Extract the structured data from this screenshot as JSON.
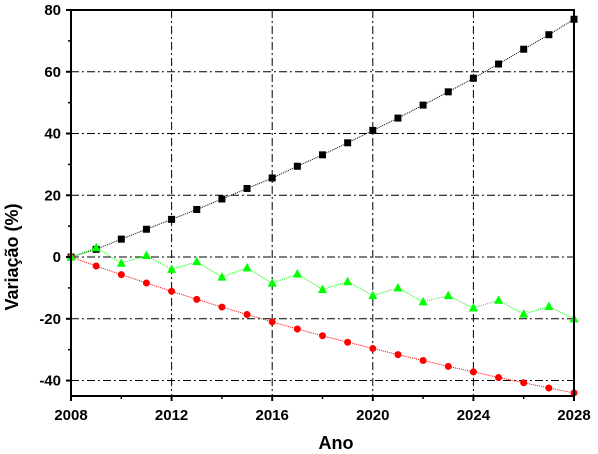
{
  "chart_data": {
    "type": "line",
    "xlabel": "Ano",
    "ylabel": "Variação (%)",
    "xlim": [
      2008,
      2028
    ],
    "ylim": [
      -45,
      80
    ],
    "x_ticks": [
      2008,
      2012,
      2016,
      2020,
      2024,
      2028
    ],
    "y_ticks": [
      -40,
      -20,
      0,
      20,
      40,
      60,
      80
    ],
    "grid": true,
    "grid_style": "dash-dot",
    "legend": "none",
    "series": [
      {
        "color": "#000000",
        "marker": "square",
        "x": [
          2008,
          2009,
          2010,
          2011,
          2012,
          2013,
          2014,
          2015,
          2016,
          2017,
          2018,
          2019,
          2020,
          2021,
          2022,
          2023,
          2024,
          2025,
          2026,
          2027,
          2028
        ],
        "values": [
          0,
          2.5,
          5.8,
          9.0,
          12.2,
          15.4,
          18.8,
          22.2,
          25.6,
          29.4,
          33.1,
          37.0,
          41.0,
          45.0,
          49.2,
          53.5,
          57.9,
          62.5,
          67.3,
          72.0,
          77.0
        ]
      },
      {
        "color": "#ff0000",
        "marker": "circle",
        "x": [
          2008,
          2009,
          2010,
          2011,
          2012,
          2013,
          2014,
          2015,
          2016,
          2017,
          2018,
          2019,
          2020,
          2021,
          2022,
          2023,
          2024,
          2025,
          2026,
          2027,
          2028
        ],
        "values": [
          0,
          -2.9,
          -5.7,
          -8.4,
          -11.1,
          -13.7,
          -16.2,
          -18.6,
          -21.0,
          -23.3,
          -25.5,
          -27.6,
          -29.6,
          -31.6,
          -33.5,
          -35.4,
          -37.2,
          -39.0,
          -40.7,
          -42.4,
          -44.0
        ]
      },
      {
        "color": "#00ff00",
        "marker": "triangle",
        "x": [
          2008,
          2009,
          2010,
          2011,
          2012,
          2013,
          2014,
          2015,
          2016,
          2017,
          2018,
          2019,
          2020,
          2021,
          2022,
          2023,
          2024,
          2025,
          2026,
          2027,
          2028
        ],
        "values": [
          0,
          3.0,
          -2.0,
          0.5,
          -4.0,
          -1.5,
          -6.5,
          -3.5,
          -8.5,
          -5.5,
          -10.5,
          -8.0,
          -12.5,
          -10.0,
          -14.5,
          -12.5,
          -16.5,
          -14.0,
          -18.5,
          -16.0,
          -20.0
        ]
      }
    ]
  }
}
